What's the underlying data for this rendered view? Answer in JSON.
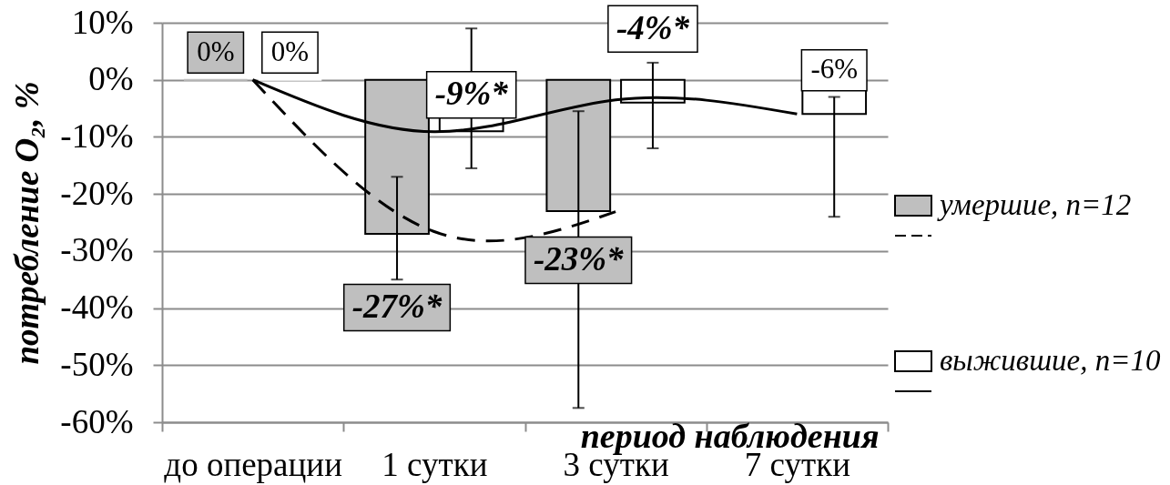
{
  "chart_data": {
    "type": "bar",
    "xlabel": "период наблюдения",
    "ylabel": "потребление O₂, %",
    "categories": [
      "до операции",
      "1 сутки",
      "3 сутки",
      "7 сутки"
    ],
    "series": [
      {
        "name": "умершие, n=12",
        "color": "#bfbfbf",
        "values": [
          0,
          -27,
          -23,
          null
        ],
        "errors": [
          null,
          [
            -35,
            -17
          ],
          [
            -57.5,
            -5.5
          ],
          null
        ],
        "value_labels": [
          "0%",
          "-27%*",
          "-23%*",
          null
        ]
      },
      {
        "name": "выжившие, n=10",
        "color": "#ffffff",
        "values": [
          0,
          -9,
          -4,
          -6
        ],
        "errors": [
          null,
          [
            -15.5,
            9
          ],
          [
            -12,
            3
          ],
          [
            -24,
            -3
          ]
        ],
        "value_labels": [
          "0%",
          "-9%*",
          "-4%*",
          "-6%"
        ]
      },
      {
        "type": "line",
        "color": "#000000",
        "line_style": "dashed",
        "values": [
          0,
          -26.6,
          -23.1,
          null
        ]
      },
      {
        "type": "line",
        "color": "#000000",
        "line_style": "solid",
        "values": [
          0,
          -9.1,
          -3.5,
          -6.0
        ]
      }
    ],
    "ylim": [
      -60,
      10
    ],
    "yticks": [
      {
        "value": 10,
        "label": "10%"
      },
      {
        "value": 0,
        "label": "0%"
      },
      {
        "value": -10,
        "label": "-10%"
      },
      {
        "value": -20,
        "label": "-20%"
      },
      {
        "value": -30,
        "label": "-30%"
      },
      {
        "value": -40,
        "label": "-40%"
      },
      {
        "value": -50,
        "label": "-50%"
      },
      {
        "value": -60,
        "label": "-60%"
      }
    ],
    "grid": "y",
    "legend": "right"
  }
}
